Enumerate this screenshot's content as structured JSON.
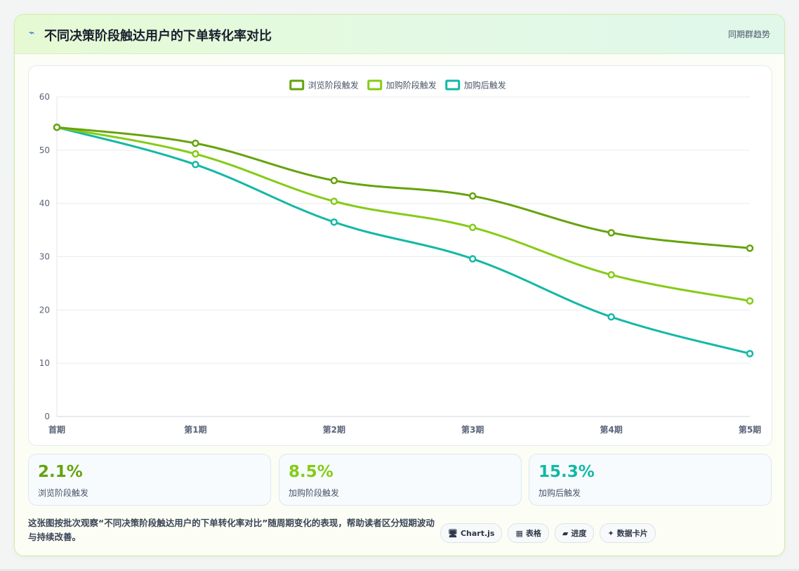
{
  "header": {
    "title_icon": "trend-icon",
    "title": "不同决策阶段触达用户的下单转化率对比",
    "link": "同期群趋势"
  },
  "chart_data": {
    "type": "line",
    "categories": [
      "首期",
      "第1期",
      "第2期",
      "第3期",
      "第4期",
      "第5期"
    ],
    "ylim": [
      0,
      60
    ],
    "yticks": [
      "0",
      "10",
      "20",
      "30",
      "40",
      "50",
      "60"
    ],
    "grid": true,
    "legend_position": "top",
    "series": [
      {
        "name": "浏览阶段触发",
        "color": "#65a30d",
        "values": [
          54.3,
          51.3,
          44.3,
          41.4,
          34.5,
          31.6
        ]
      },
      {
        "name": "加购阶段触发",
        "color": "#84cc16",
        "values": [
          54.3,
          49.3,
          40.4,
          35.5,
          26.6,
          21.7
        ]
      },
      {
        "name": "加购后触发",
        "color": "#14b8a6",
        "values": [
          54.3,
          47.3,
          36.5,
          29.6,
          18.7,
          11.8
        ]
      }
    ]
  },
  "stats": [
    {
      "value": "2.1%",
      "label": "浏览阶段触发",
      "color": "#65a30d"
    },
    {
      "value": "8.5%",
      "label": "加购阶段触发",
      "color": "#84cc16"
    },
    {
      "value": "15.3%",
      "label": "加购后触发",
      "color": "#14b8a6"
    }
  ],
  "description": "这张图按批次观察“不同决策阶段触达用户的下单转化率对比”随周期变化的表现，帮助读者区分短期波动与持续改善。",
  "chips": [
    {
      "icon": "🖥",
      "icon_name": "monitor-icon",
      "label": "Chart.js"
    },
    {
      "icon": "▦",
      "icon_name": "table-icon",
      "label": "表格"
    },
    {
      "icon": "▰",
      "icon_name": "progress-icon",
      "label": "进度"
    },
    {
      "icon": "✦",
      "icon_name": "sparkle-icon",
      "label": "数据卡片"
    }
  ]
}
